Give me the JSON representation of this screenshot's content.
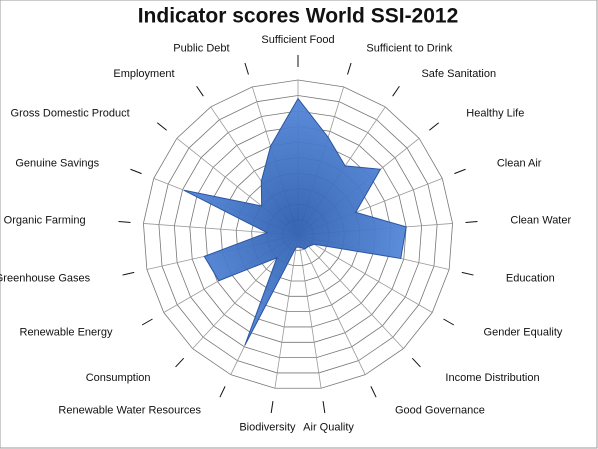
{
  "chart_data": {
    "type": "radar",
    "title": "Indicator scores World SSI-2012",
    "categories": [
      "Sufficient Food",
      "Sufficient to Drink",
      "Safe Sanitation",
      "Healthy Life",
      "Clean Air",
      "Clean Water",
      "Education",
      "Gender Equality",
      "Income Distribution",
      "Good Governance",
      "Air Quality",
      "Biodiversity",
      "Renewable Water Resources",
      "Consumption",
      "Renewable Energy",
      "Greenhouse Gases",
      "Organic Farming",
      "Genuine Savings",
      "Gross Domestic Product",
      "Employment",
      "Public Debt"
    ],
    "values": [
      8.8,
      6.6,
      5.4,
      6.8,
      4.0,
      7.0,
      6.8,
      1.2,
      1.0,
      1.0,
      0.8,
      0.8,
      7.9,
      2.0,
      5.9,
      6.2,
      2.0,
      7.9,
      3.0,
      4.2,
      6.0
    ],
    "color": "#4a7fd0",
    "ylim": [
      0,
      10
    ],
    "yticks": [
      1,
      2,
      3,
      4,
      5,
      6,
      7,
      8,
      9,
      10
    ],
    "grid": true
  }
}
